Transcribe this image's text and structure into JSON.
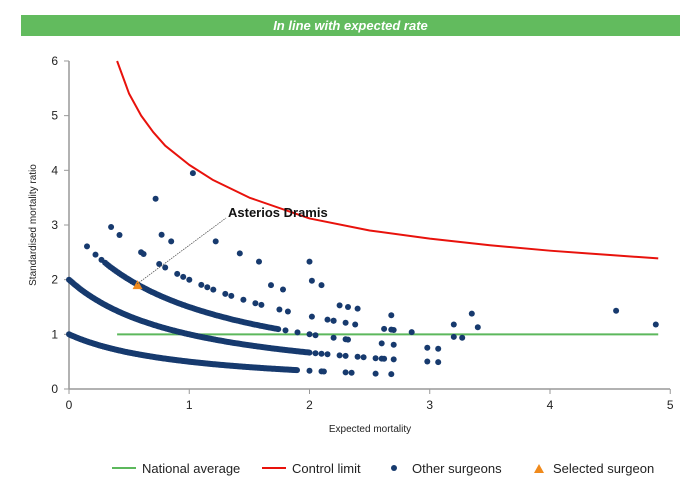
{
  "banner": {
    "title": "In line with expected rate"
  },
  "colors": {
    "banner": "#62bb5e",
    "national": "#5cb85c",
    "control": "#e8120c",
    "others": "#173a6e",
    "selected": "#f08a1c"
  },
  "chart_data": {
    "type": "scatter",
    "title": "In line with expected rate",
    "xlabel": "Expected mortality",
    "ylabel": "Standardised mortality ratio",
    "xlim": [
      0,
      5
    ],
    "ylim": [
      0,
      6
    ],
    "xticks": [
      "0",
      "1",
      "2",
      "3",
      "4",
      "5"
    ],
    "yticks": [
      "0",
      "1",
      "2",
      "3",
      "4",
      "5",
      "6"
    ],
    "grid": false,
    "legend_position": "bottom-right",
    "legend": [
      "National average",
      "Control limit",
      "Other surgeons",
      "Selected surgeon"
    ],
    "national_average": {
      "name": "National average",
      "y": 1,
      "x_range": [
        0.4,
        4.9
      ]
    },
    "control_limit": {
      "name": "Control limit",
      "points": [
        [
          0.4,
          6
        ],
        [
          0.5,
          5.4
        ],
        [
          0.6,
          5.0
        ],
        [
          0.7,
          4.7
        ],
        [
          0.8,
          4.45
        ],
        [
          1,
          4.1
        ],
        [
          1.2,
          3.82
        ],
        [
          1.5,
          3.5
        ],
        [
          2,
          3.12
        ],
        [
          2.5,
          2.9
        ],
        [
          3,
          2.75
        ],
        [
          3.5,
          2.63
        ],
        [
          4,
          2.53
        ],
        [
          4.5,
          2.45
        ],
        [
          4.9,
          2.39
        ]
      ]
    },
    "other_surgeons": {
      "name": "Other surgeons",
      "dense_bands": [
        {
          "deaths": 1,
          "x_start": 0,
          "x_end": 1.9,
          "step": 0.008
        },
        {
          "deaths": 2,
          "x_start": 0,
          "x_end": 2.0,
          "step": 0.01
        },
        {
          "deaths": 3,
          "x_start": 0.3,
          "x_end": 1.75,
          "step": 0.015
        }
      ],
      "sparse_bands": [
        {
          "deaths": 1,
          "x": [
            2.0,
            2.1,
            2.12,
            2.3,
            2.35,
            2.55,
            2.68
          ]
        },
        {
          "deaths": 2,
          "x": [
            2.05,
            2.1,
            2.15,
            2.25,
            2.3,
            2.4,
            2.45,
            2.55,
            2.6,
            2.62,
            2.7,
            2.98,
            3.07
          ]
        },
        {
          "deaths": 3,
          "x": [
            0.15,
            0.22,
            0.27,
            1.8,
            1.9,
            2.0,
            2.05,
            2.2,
            2.3,
            2.32,
            2.6,
            2.7,
            2.98,
            3.07
          ]
        },
        {
          "deaths": 4,
          "x": [
            0.35,
            0.42,
            0.6,
            0.62,
            0.75,
            0.8,
            0.9,
            0.95,
            1.0,
            1.1,
            1.15,
            1.2,
            1.3,
            1.35,
            1.45,
            1.55,
            1.6,
            1.75,
            1.82,
            2.02,
            2.2,
            2.3,
            2.68,
            3.2,
            3.27
          ]
        }
      ],
      "outliers": [
        [
          0.72,
          3.48
        ],
        [
          1.03,
          3.95
        ],
        [
          0.77,
          2.82
        ],
        [
          0.85,
          2.7
        ],
        [
          1.22,
          2.7
        ],
        [
          1.42,
          2.48
        ],
        [
          1.58,
          2.33
        ],
        [
          1.68,
          1.9
        ],
        [
          1.78,
          1.82
        ],
        [
          2.0,
          2.33
        ],
        [
          2.02,
          1.98
        ],
        [
          2.1,
          1.9
        ],
        [
          2.25,
          1.53
        ],
        [
          2.32,
          1.5
        ],
        [
          2.4,
          1.47
        ],
        [
          2.38,
          1.18
        ],
        [
          2.68,
          1.35
        ],
        [
          2.7,
          1.08
        ],
        [
          2.62,
          1.1
        ],
        [
          2.85,
          1.04
        ],
        [
          3.2,
          1.18
        ],
        [
          3.35,
          1.38
        ],
        [
          3.4,
          1.13
        ],
        [
          4.55,
          1.43
        ],
        [
          4.88,
          1.18
        ],
        [
          2.15,
          1.27
        ],
        [
          2.2,
          1.25
        ]
      ]
    },
    "selected_surgeon": {
      "name": "Asterios Dramis",
      "x": 0.57,
      "y": 1.9
    }
  }
}
